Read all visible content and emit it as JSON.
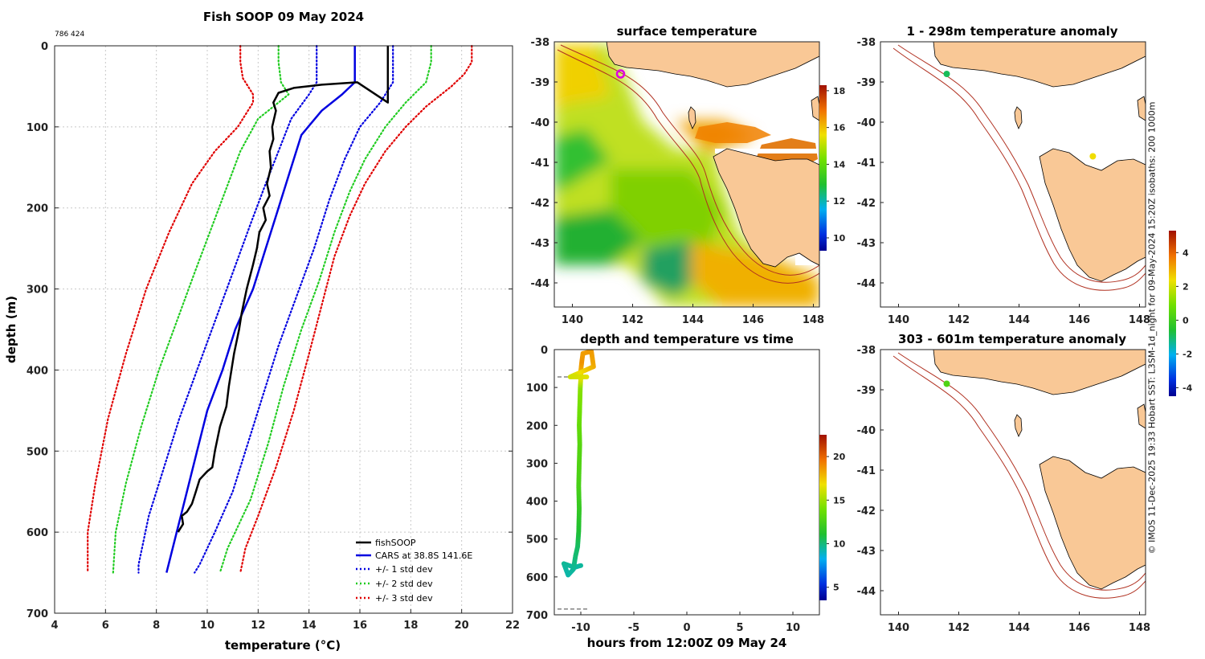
{
  "page": {
    "credit": "© IMOS 11-Dec-2025 19:33 Hobart SST: L3SM-1d_night for 09-May-2024 15:20Z  isobaths: 200  1000m"
  },
  "colors": {
    "fishsoop": "#000000",
    "cars": "#0000e0",
    "std1": "#0000e0",
    "std2": "#22cc22",
    "std3": "#e00000",
    "land": "#f9c896",
    "isobath": "#b03020",
    "grid": "#c8c8c8"
  },
  "chart_data": [
    {
      "id": "profile",
      "type": "line",
      "title": "Fish SOOP 09 May 2024",
      "subtitle": "786 424",
      "xlabel": "temperature (°C)",
      "ylabel": "depth (m)",
      "xlim": [
        4,
        22
      ],
      "ylim": [
        0,
        700
      ],
      "y_reversed": true,
      "grid": true,
      "xticks": [
        "4",
        "6",
        "8",
        "10",
        "12",
        "14",
        "16",
        "18",
        "20",
        "22"
      ],
      "yticks": [
        "0",
        "100",
        "200",
        "300",
        "400",
        "500",
        "600",
        "700"
      ],
      "legend_position": "bottom-right",
      "series": [
        {
          "name": "fishSOOP",
          "style": "solid",
          "color": "#000000",
          "points": [
            [
              17.1,
              0
            ],
            [
              17.1,
              45
            ],
            [
              17.1,
              70
            ],
            [
              15.9,
              45
            ],
            [
              14.5,
              48
            ],
            [
              13.4,
              52
            ],
            [
              12.8,
              58
            ],
            [
              12.6,
              70
            ],
            [
              12.7,
              80
            ],
            [
              12.55,
              100
            ],
            [
              12.6,
              115
            ],
            [
              12.45,
              130
            ],
            [
              12.5,
              150
            ],
            [
              12.35,
              170
            ],
            [
              12.45,
              185
            ],
            [
              12.2,
              200
            ],
            [
              12.3,
              215
            ],
            [
              12.05,
              230
            ],
            [
              11.95,
              250
            ],
            [
              11.8,
              270
            ],
            [
              11.55,
              300
            ],
            [
              11.35,
              330
            ],
            [
              11.25,
              350
            ],
            [
              11.05,
              380
            ],
            [
              10.95,
              400
            ],
            [
              10.85,
              420
            ],
            [
              10.75,
              445
            ],
            [
              10.5,
              470
            ],
            [
              10.3,
              500
            ],
            [
              10.2,
              520
            ],
            [
              10.0,
              525
            ],
            [
              9.7,
              535
            ],
            [
              9.55,
              550
            ],
            [
              9.4,
              565
            ],
            [
              9.2,
              575
            ],
            [
              9.0,
              580
            ],
            [
              9.05,
              590
            ],
            [
              8.85,
              600
            ]
          ]
        },
        {
          "name": "CARS at 38.8S 141.6E",
          "style": "solid",
          "color": "#0000e0",
          "points": [
            [
              15.8,
              0
            ],
            [
              15.8,
              25
            ],
            [
              15.8,
              45
            ],
            [
              15.3,
              60
            ],
            [
              14.5,
              80
            ],
            [
              13.7,
              110
            ],
            [
              13.3,
              150
            ],
            [
              12.8,
              200
            ],
            [
              12.3,
              250
            ],
            [
              11.8,
              300
            ],
            [
              11.1,
              350
            ],
            [
              10.6,
              400
            ],
            [
              10.0,
              450
            ],
            [
              9.6,
              500
            ],
            [
              9.2,
              550
            ],
            [
              8.8,
              600
            ],
            [
              8.4,
              650
            ]
          ]
        },
        {
          "name": "+/- 1 std dev",
          "style": "dotted",
          "color": "#0000e0",
          "points": [
            [
              14.3,
              0
            ],
            [
              14.3,
              25
            ],
            [
              14.3,
              45
            ],
            [
              14.0,
              60
            ],
            [
              13.3,
              90
            ],
            [
              12.8,
              130
            ],
            [
              12.3,
              170
            ],
            [
              11.7,
              220
            ],
            [
              11.0,
              280
            ],
            [
              10.3,
              340
            ],
            [
              9.6,
              400
            ],
            [
              8.9,
              460
            ],
            [
              8.3,
              520
            ],
            [
              7.7,
              580
            ],
            [
              7.3,
              640
            ],
            [
              7.3,
              650
            ]
          ]
        },
        {
          "name": "+/- 1 std dev (upper)",
          "style": "dotted",
          "color": "#0000e0",
          "points": [
            [
              17.3,
              0
            ],
            [
              17.3,
              25
            ],
            [
              17.3,
              45
            ],
            [
              16.8,
              70
            ],
            [
              16.0,
              100
            ],
            [
              15.4,
              140
            ],
            [
              14.8,
              190
            ],
            [
              14.2,
              250
            ],
            [
              13.5,
              310
            ],
            [
              12.8,
              370
            ],
            [
              12.2,
              430
            ],
            [
              11.6,
              490
            ],
            [
              11.0,
              550
            ],
            [
              10.3,
              600
            ],
            [
              9.7,
              640
            ],
            [
              9.5,
              650
            ]
          ]
        },
        {
          "name": "+/- 2 std dev",
          "style": "dotted",
          "color": "#22cc22",
          "points": [
            [
              12.8,
              0
            ],
            [
              12.8,
              20
            ],
            [
              12.9,
              45
            ],
            [
              13.2,
              60
            ],
            [
              12.0,
              90
            ],
            [
              11.3,
              130
            ],
            [
              10.7,
              180
            ],
            [
              10.1,
              230
            ],
            [
              9.5,
              280
            ],
            [
              8.8,
              340
            ],
            [
              8.1,
              400
            ],
            [
              7.4,
              470
            ],
            [
              6.8,
              540
            ],
            [
              6.4,
              600
            ],
            [
              6.3,
              650
            ]
          ]
        },
        {
          "name": "+/- 2 std dev (upper)",
          "style": "dotted",
          "color": "#22cc22",
          "points": [
            [
              18.8,
              0
            ],
            [
              18.8,
              20
            ],
            [
              18.6,
              45
            ],
            [
              17.8,
              70
            ],
            [
              17.0,
              100
            ],
            [
              16.2,
              140
            ],
            [
              15.6,
              180
            ],
            [
              15.0,
              230
            ],
            [
              14.4,
              290
            ],
            [
              13.7,
              350
            ],
            [
              13.0,
              420
            ],
            [
              12.4,
              490
            ],
            [
              11.7,
              560
            ],
            [
              10.8,
              620
            ],
            [
              10.5,
              650
            ]
          ]
        },
        {
          "name": "+/- 3 std dev",
          "style": "dotted",
          "color": "#e00000",
          "points": [
            [
              11.3,
              0
            ],
            [
              11.3,
              20
            ],
            [
              11.4,
              40
            ],
            [
              11.6,
              50
            ],
            [
              11.8,
              60
            ],
            [
              11.8,
              70
            ],
            [
              11.2,
              100
            ],
            [
              10.3,
              130
            ],
            [
              9.4,
              170
            ],
            [
              8.5,
              230
            ],
            [
              7.6,
              300
            ],
            [
              6.8,
              380
            ],
            [
              6.1,
              460
            ],
            [
              5.6,
              540
            ],
            [
              5.3,
              600
            ],
            [
              5.3,
              650
            ]
          ]
        },
        {
          "name": "+/- 3 std dev (upper)",
          "style": "dotted",
          "color": "#e00000",
          "points": [
            [
              20.4,
              0
            ],
            [
              20.4,
              20
            ],
            [
              20.1,
              35
            ],
            [
              19.6,
              50
            ],
            [
              18.6,
              75
            ],
            [
              17.8,
              100
            ],
            [
              17.0,
              130
            ],
            [
              16.2,
              170
            ],
            [
              15.6,
              210
            ],
            [
              15.0,
              260
            ],
            [
              14.5,
              320
            ],
            [
              14.0,
              380
            ],
            [
              13.4,
              450
            ],
            [
              12.7,
              520
            ],
            [
              12.0,
              580
            ],
            [
              11.5,
              620
            ],
            [
              11.3,
              650
            ]
          ]
        }
      ]
    },
    {
      "id": "sst",
      "type": "heatmap",
      "title": "surface temperature",
      "xlim": [
        139.4,
        148.2
      ],
      "ylim": [
        -44.6,
        -38
      ],
      "xticks": [
        "140",
        "142",
        "144",
        "146",
        "148"
      ],
      "yticks": [
        "-38",
        "-39",
        "-40",
        "-41",
        "-42",
        "-43",
        "-44"
      ],
      "colorbar": {
        "range": [
          9.3,
          18.3
        ],
        "ticks": [
          "10",
          "12",
          "14",
          "16",
          "18"
        ]
      },
      "marker": {
        "lon": 141.6,
        "lat": -38.8,
        "color": "#e000e0"
      }
    },
    {
      "id": "time",
      "type": "scatter",
      "title": "depth and temperature vs time",
      "xlabel": "hours from 12:00Z 09 May 24",
      "xlim": [
        -12.5,
        12.5
      ],
      "ylim": [
        0,
        700
      ],
      "y_reversed": true,
      "xticks": [
        "-10",
        "-5",
        "0",
        "5",
        "10"
      ],
      "yticks": [
        "0",
        "100",
        "200",
        "300",
        "400",
        "500",
        "600",
        "700"
      ],
      "colorbar": {
        "range": [
          3.5,
          22.5
        ],
        "ticks": [
          "5",
          "10",
          "15",
          "20"
        ]
      },
      "dashed_depths": [
        72,
        685
      ],
      "points": [
        [
          -10.0,
          570,
          9.5
        ],
        [
          -10.6,
          575,
          9.4
        ],
        [
          -11.6,
          565,
          9.6
        ],
        [
          -11.2,
          595,
          9.3
        ],
        [
          -10.7,
          580,
          9.5
        ],
        [
          -10.5,
          545,
          10.1
        ],
        [
          -10.3,
          520,
          10.3
        ],
        [
          -10.2,
          480,
          11.0
        ],
        [
          -10.15,
          420,
          11.8
        ],
        [
          -10.2,
          360,
          12.5
        ],
        [
          -10.15,
          300,
          12.8
        ],
        [
          -10.1,
          250,
          13.0
        ],
        [
          -10.15,
          200,
          13.5
        ],
        [
          -10.1,
          150,
          14.0
        ],
        [
          -10.05,
          100,
          14.5
        ],
        [
          -10.0,
          75,
          16.5
        ],
        [
          -10.0,
          55,
          18.0
        ],
        [
          -9.9,
          30,
          18.8
        ],
        [
          -9.8,
          10,
          18.5
        ],
        [
          -9.0,
          5,
          18.6
        ],
        [
          -8.8,
          45,
          18.2
        ],
        [
          -11.0,
          72,
          16.0
        ],
        [
          -9.3,
          72,
          16.5
        ]
      ]
    },
    {
      "id": "anom_shallow",
      "type": "scatter",
      "title": "1 - 298m temperature anomaly",
      "xlim": [
        139.4,
        148.2
      ],
      "ylim": [
        -44.6,
        -38
      ],
      "xticks": [
        "140",
        "142",
        "144",
        "146",
        "148"
      ],
      "yticks": [
        "-38",
        "-39",
        "-40",
        "-41",
        "-42",
        "-43",
        "-44"
      ],
      "colorbar": {
        "range": [
          -4.5,
          5.3
        ],
        "ticks": [
          "-4",
          "-2",
          "0",
          "2",
          "4"
        ]
      },
      "points": [
        [
          141.6,
          -38.8,
          -0.9
        ],
        [
          146.45,
          -40.85,
          2.4
        ]
      ]
    },
    {
      "id": "anom_deep",
      "type": "scatter",
      "title": "303 - 601m temperature anomaly",
      "xlim": [
        139.4,
        148.2
      ],
      "ylim": [
        -44.6,
        -38
      ],
      "xticks": [
        "140",
        "142",
        "144",
        "146",
        "148"
      ],
      "yticks": [
        "-38",
        "-39",
        "-40",
        "-41",
        "-42",
        "-43",
        "-44"
      ],
      "points": [
        [
          141.6,
          -38.85,
          0.3
        ]
      ]
    }
  ]
}
